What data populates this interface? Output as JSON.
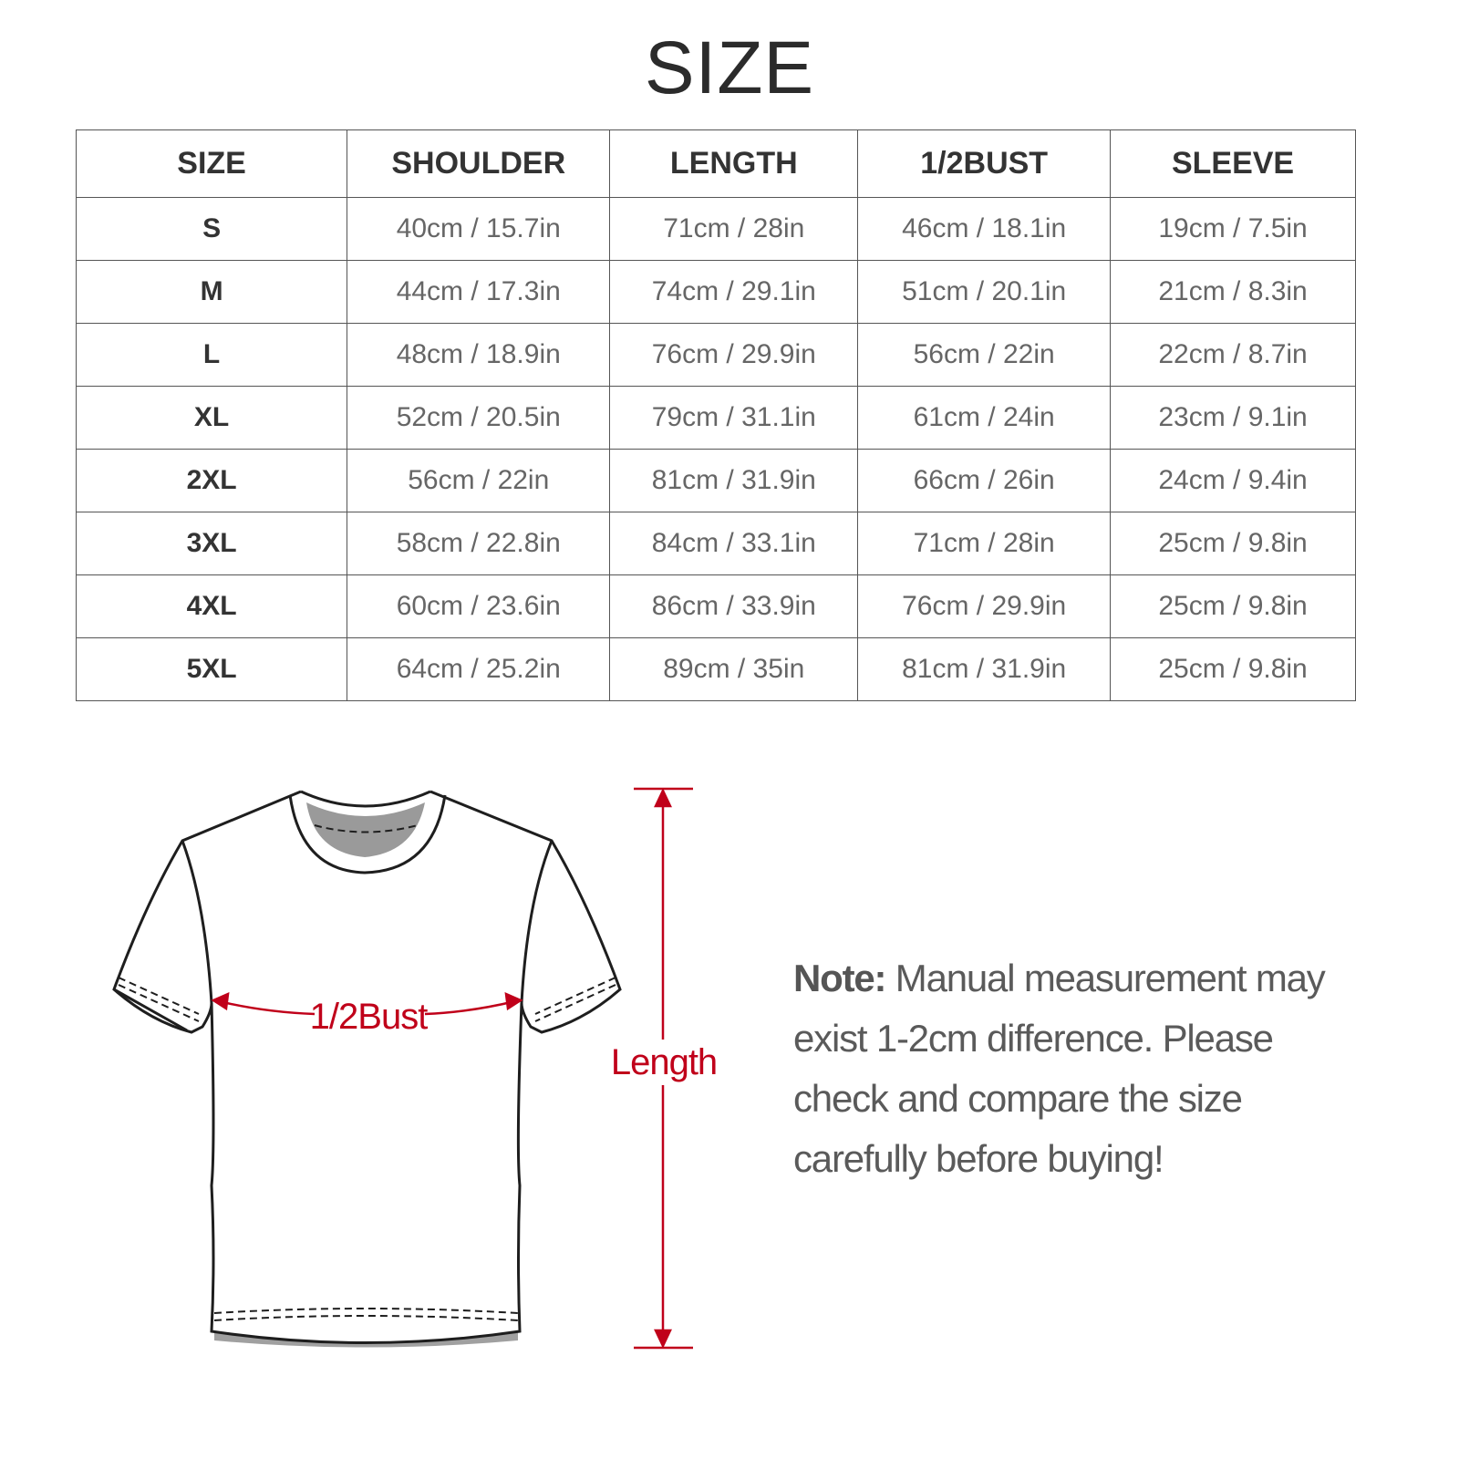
{
  "title": "SIZE",
  "table": {
    "headers": [
      "SIZE",
      "SHOULDER",
      "LENGTH",
      "1/2BUST",
      "SLEEVE"
    ],
    "rows": [
      [
        "S",
        "40cm / 15.7in",
        "71cm / 28in",
        "46cm / 18.1in",
        "19cm / 7.5in"
      ],
      [
        "M",
        "44cm / 17.3in",
        "74cm / 29.1in",
        "51cm / 20.1in",
        "21cm / 8.3in"
      ],
      [
        "L",
        "48cm / 18.9in",
        "76cm / 29.9in",
        "56cm / 22in",
        "22cm / 8.7in"
      ],
      [
        "XL",
        "52cm / 20.5in",
        "79cm / 31.1in",
        "61cm / 24in",
        "23cm / 9.1in"
      ],
      [
        "2XL",
        "56cm / 22in",
        "81cm / 31.9in",
        "66cm / 26in",
        "24cm / 9.4in"
      ],
      [
        "3XL",
        "58cm / 22.8in",
        "84cm / 33.1in",
        "71cm / 28in",
        "25cm / 9.8in"
      ],
      [
        "4XL",
        "60cm / 23.6in",
        "86cm / 33.9in",
        "76cm / 29.9in",
        "25cm / 9.8in"
      ],
      [
        "5XL",
        "64cm / 25.2in",
        "89cm / 35in",
        "81cm / 31.9in",
        "25cm / 9.8in"
      ]
    ]
  },
  "diagram": {
    "bust_label": "1/2Bust",
    "length_label": "Length",
    "accent_color": "#c0001a"
  },
  "note": {
    "label": "Note:",
    "text": " Manual measurement may exist 1-2cm difference. Please check and compare the size carefully before buying!"
  }
}
